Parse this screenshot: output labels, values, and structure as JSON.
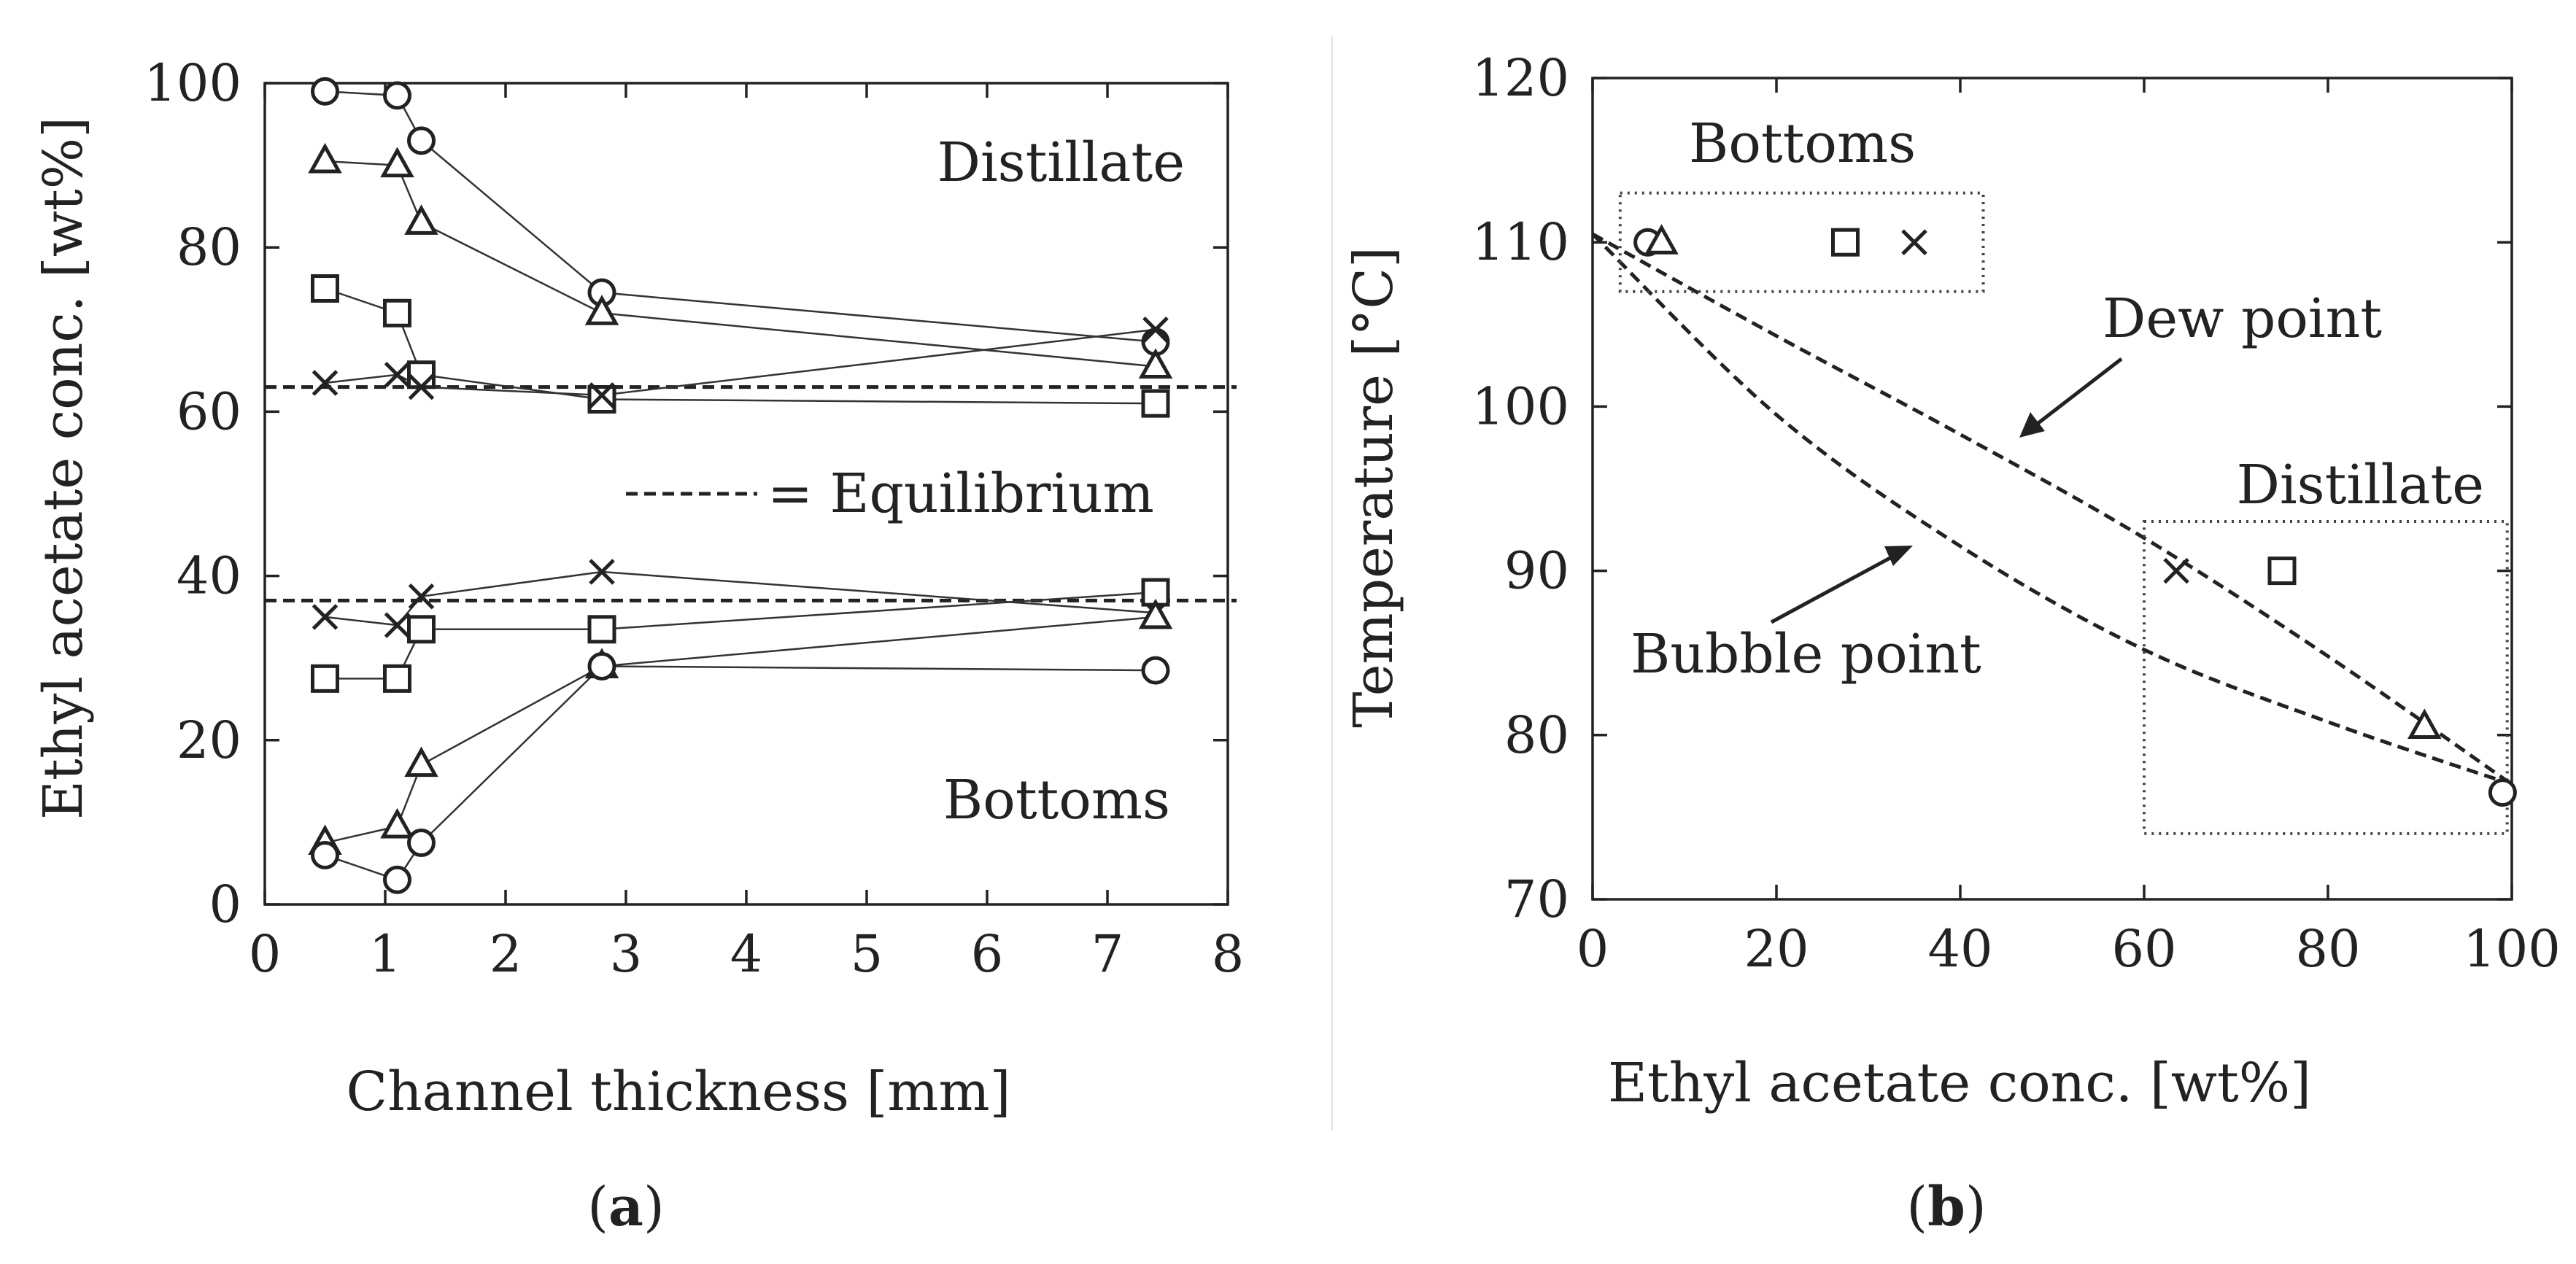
{
  "chart_data": [
    {
      "type": "line",
      "panel_label": "a",
      "xlabel": "Channel thickness [mm]",
      "ylabel": "Ethyl acetate conc. [wt%]",
      "xlim": [
        0,
        8
      ],
      "ylim": [
        0,
        100
      ],
      "xticks": [
        0,
        1,
        2,
        3,
        4,
        5,
        6,
        7,
        8
      ],
      "yticks": [
        0,
        20,
        40,
        60,
        80,
        100
      ],
      "x": [
        0.5,
        1.1,
        1.3,
        2.8,
        7.4
      ],
      "series": [
        {
          "name": "Distillate circle",
          "group": "Distillate",
          "marker": "circle",
          "values": [
            99,
            98.5,
            93,
            74.5,
            68.5
          ]
        },
        {
          "name": "Distillate triangle",
          "group": "Distillate",
          "marker": "triangle",
          "values": [
            90.5,
            90,
            83,
            72,
            65.5
          ]
        },
        {
          "name": "Distillate square",
          "group": "Distillate",
          "marker": "square",
          "values": [
            75,
            72,
            64.5,
            61.5,
            61
          ]
        },
        {
          "name": "Distillate cross",
          "group": "Distillate",
          "marker": "cross",
          "values": [
            63.5,
            64.5,
            63,
            62,
            70
          ]
        },
        {
          "name": "Bottoms cross",
          "group": "Bottoms",
          "marker": "cross",
          "values": [
            35,
            34,
            37.5,
            40.5,
            35.5
          ]
        },
        {
          "name": "Bottoms square",
          "group": "Bottoms",
          "marker": "square",
          "values": [
            27.5,
            27.5,
            33.5,
            33.5,
            38
          ]
        },
        {
          "name": "Bottoms triangle",
          "group": "Bottoms",
          "marker": "triangle",
          "values": [
            7.5,
            9.5,
            17,
            29,
            35
          ]
        },
        {
          "name": "Bottoms circle",
          "group": "Bottoms",
          "marker": "circle",
          "values": [
            6,
            3,
            7.5,
            29,
            28.5
          ]
        }
      ],
      "equilibrium_lines": [
        63,
        37
      ],
      "legend_text": "= Equilibrium",
      "annotations": [
        "Distillate",
        "Bottoms"
      ]
    },
    {
      "type": "line",
      "panel_label": "b",
      "xlabel": "Ethyl acetate conc. [wt%]",
      "ylabel": "Temperature [°C]",
      "xlim": [
        0,
        100
      ],
      "ylim": [
        70,
        120
      ],
      "xticks": [
        0,
        20,
        40,
        60,
        80,
        100
      ],
      "yticks": [
        70,
        80,
        90,
        100,
        110,
        120
      ],
      "curves": [
        {
          "name": "Dew point",
          "x": [
            0,
            20,
            40,
            60,
            80,
            100
          ],
          "y": [
            110.5,
            104.3,
            98.3,
            92,
            84.8,
            77
          ]
        },
        {
          "name": "Bubble point",
          "x": [
            0,
            20,
            40,
            60,
            80,
            100
          ],
          "y": [
            110.5,
            99.5,
            91.5,
            85.2,
            80.8,
            77
          ]
        }
      ],
      "points": [
        {
          "marker": "circle",
          "x": 6,
          "y": 110,
          "group": "Bottoms"
        },
        {
          "marker": "triangle",
          "x": 7.5,
          "y": 110,
          "group": "Bottoms"
        },
        {
          "marker": "square",
          "x": 27.5,
          "y": 110,
          "group": "Bottoms"
        },
        {
          "marker": "cross",
          "x": 35,
          "y": 110,
          "group": "Bottoms"
        },
        {
          "marker": "cross",
          "x": 63.5,
          "y": 90,
          "group": "Distillate"
        },
        {
          "marker": "square",
          "x": 75,
          "y": 90,
          "group": "Distillate"
        },
        {
          "marker": "triangle",
          "x": 90.5,
          "y": 80.5,
          "group": "Distillate"
        },
        {
          "marker": "circle",
          "x": 99,
          "y": 76.5,
          "group": "Distillate"
        }
      ],
      "boxes": [
        {
          "name": "Bottoms",
          "x0": 3,
          "x1": 42.5,
          "y0": 107,
          "y1": 113
        },
        {
          "name": "Distillate",
          "x0": 60,
          "x1": 99.5,
          "y0": 74,
          "y1": 93
        }
      ],
      "annotations": [
        "Bottoms",
        "Distillate",
        "Dew point",
        "Bubble point"
      ]
    }
  ]
}
